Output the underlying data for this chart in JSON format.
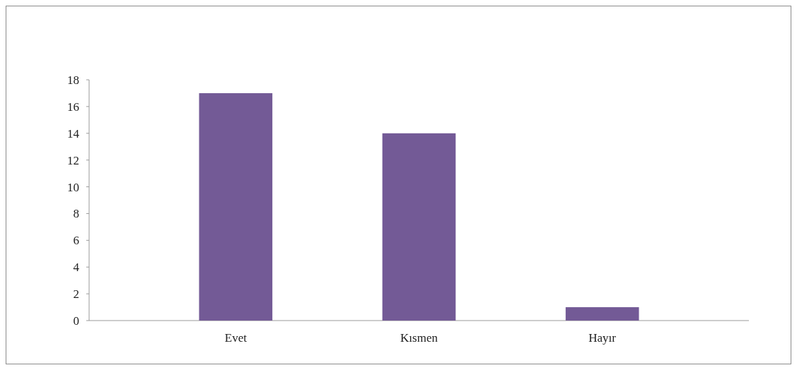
{
  "chart_data": {
    "type": "bar",
    "categories": [
      "Evet",
      "Kısmen",
      "Hayır"
    ],
    "values": [
      17,
      14,
      1
    ],
    "color": "#735a96",
    "ylim": [
      0,
      18
    ],
    "yticks": [
      0,
      2,
      4,
      6,
      8,
      10,
      12,
      14,
      16,
      18
    ],
    "grid": false
  }
}
